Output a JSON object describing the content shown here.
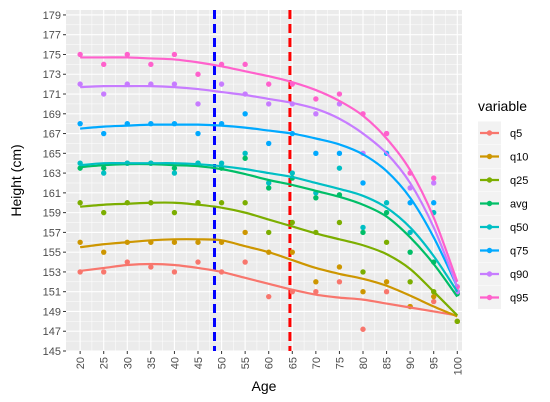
{
  "chart_data": {
    "type": "line",
    "xlabel": "Age",
    "ylabel": "Height (cm)",
    "xlim": [
      17,
      101
    ],
    "ylim": [
      145,
      179.5
    ],
    "x_ticks": [
      20,
      25,
      30,
      35,
      40,
      45,
      50,
      55,
      60,
      65,
      70,
      75,
      80,
      85,
      90,
      95,
      100
    ],
    "y_ticks": [
      145,
      147,
      149,
      151,
      153,
      155,
      157,
      159,
      161,
      163,
      165,
      167,
      169,
      171,
      173,
      175,
      177,
      179
    ],
    "grid": true,
    "legend_title": "variable",
    "legend_position": "right",
    "vlines": [
      {
        "x": 48.5,
        "color": "#0000ff",
        "style": "dashed"
      },
      {
        "x": 64.5,
        "color": "#ff0000",
        "style": "dashed"
      }
    ],
    "series": [
      {
        "name": "q5",
        "color": "#F8766D",
        "points": [
          [
            20,
            153
          ],
          [
            25,
            153
          ],
          [
            30,
            154
          ],
          [
            35,
            153.5
          ],
          [
            40,
            153
          ],
          [
            45,
            154
          ],
          [
            50,
            153
          ],
          [
            55,
            154
          ],
          [
            60,
            150.5
          ],
          [
            65,
            151
          ],
          [
            70,
            151
          ],
          [
            75,
            152
          ],
          [
            80,
            147.2
          ],
          [
            85,
            151
          ],
          [
            90,
            149.5
          ],
          [
            95,
            150
          ],
          [
            100,
            148
          ]
        ],
        "curve": [
          [
            20,
            153.1
          ],
          [
            25,
            153.4
          ],
          [
            30,
            153.7
          ],
          [
            35,
            153.8
          ],
          [
            40,
            153.7
          ],
          [
            45,
            153.4
          ],
          [
            50,
            153
          ],
          [
            55,
            152.4
          ],
          [
            60,
            151.8
          ],
          [
            65,
            151.2
          ],
          [
            70,
            150.7
          ],
          [
            75,
            150.4
          ],
          [
            80,
            150.2
          ],
          [
            85,
            149.8
          ],
          [
            90,
            149.4
          ],
          [
            95,
            149
          ],
          [
            100,
            148.6
          ]
        ]
      },
      {
        "name": "q10",
        "color": "#CD9600",
        "points": [
          [
            20,
            156
          ],
          [
            25,
            155
          ],
          [
            30,
            156
          ],
          [
            35,
            156
          ],
          [
            40,
            156
          ],
          [
            45,
            156
          ],
          [
            50,
            156
          ],
          [
            55,
            157
          ],
          [
            60,
            155
          ],
          [
            65,
            155
          ],
          [
            70,
            152
          ],
          [
            75,
            153.5
          ],
          [
            80,
            151
          ],
          [
            85,
            152
          ],
          [
            90,
            149.5
          ],
          [
            95,
            150.5
          ],
          [
            100,
            148
          ]
        ],
        "curve": [
          [
            20,
            155.5
          ],
          [
            25,
            155.8
          ],
          [
            30,
            156
          ],
          [
            35,
            156.2
          ],
          [
            40,
            156.3
          ],
          [
            45,
            156.3
          ],
          [
            50,
            156.2
          ],
          [
            55,
            155.6
          ],
          [
            60,
            155
          ],
          [
            65,
            154.2
          ],
          [
            70,
            153.4
          ],
          [
            75,
            152.8
          ],
          [
            80,
            152.3
          ],
          [
            85,
            151.6
          ],
          [
            90,
            150.6
          ],
          [
            95,
            149.5
          ],
          [
            100,
            148.5
          ]
        ]
      },
      {
        "name": "q25",
        "color": "#7CAE00",
        "points": [
          [
            20,
            160
          ],
          [
            25,
            159
          ],
          [
            30,
            160
          ],
          [
            35,
            160
          ],
          [
            40,
            159
          ],
          [
            45,
            160
          ],
          [
            50,
            160
          ],
          [
            55,
            160
          ],
          [
            60,
            157
          ],
          [
            65,
            158
          ],
          [
            70,
            157
          ],
          [
            75,
            158
          ],
          [
            80,
            153
          ],
          [
            85,
            156
          ],
          [
            90,
            152
          ],
          [
            95,
            151
          ],
          [
            100,
            148
          ]
        ],
        "curve": [
          [
            20,
            159.6
          ],
          [
            25,
            159.8
          ],
          [
            30,
            159.9
          ],
          [
            35,
            160
          ],
          [
            40,
            160
          ],
          [
            45,
            159.8
          ],
          [
            50,
            159.5
          ],
          [
            55,
            159
          ],
          [
            60,
            158.3
          ],
          [
            65,
            157.6
          ],
          [
            70,
            156.9
          ],
          [
            75,
            156.3
          ],
          [
            80,
            155.7
          ],
          [
            85,
            154.8
          ],
          [
            90,
            153.3
          ],
          [
            95,
            151
          ],
          [
            100,
            148.6
          ]
        ]
      },
      {
        "name": "avg",
        "color": "#00BE67",
        "points": [
          [
            20,
            163.5
          ],
          [
            25,
            163.5
          ],
          [
            30,
            164
          ],
          [
            35,
            164
          ],
          [
            40,
            163.5
          ],
          [
            45,
            164
          ],
          [
            50,
            163.5
          ],
          [
            55,
            164.5
          ],
          [
            60,
            161.5
          ],
          [
            65,
            162.5
          ],
          [
            70,
            160.5
          ],
          [
            75,
            160.8
          ],
          [
            80,
            157
          ],
          [
            85,
            159
          ],
          [
            90,
            155
          ],
          [
            95,
            154
          ],
          [
            100,
            150.8
          ]
        ],
        "curve": [
          [
            20,
            163.6
          ],
          [
            25,
            163.8
          ],
          [
            30,
            163.9
          ],
          [
            35,
            163.9
          ],
          [
            40,
            163.8
          ],
          [
            45,
            163.7
          ],
          [
            50,
            163.4
          ],
          [
            55,
            162.9
          ],
          [
            60,
            162.3
          ],
          [
            65,
            161.8
          ],
          [
            70,
            161.2
          ],
          [
            75,
            160.6
          ],
          [
            80,
            159.8
          ],
          [
            85,
            158.6
          ],
          [
            90,
            156.5
          ],
          [
            95,
            153.8
          ],
          [
            100,
            150.5
          ]
        ]
      },
      {
        "name": "q50",
        "color": "#00BFC4",
        "points": [
          [
            20,
            164
          ],
          [
            25,
            163
          ],
          [
            30,
            164
          ],
          [
            35,
            164
          ],
          [
            40,
            163
          ],
          [
            45,
            164
          ],
          [
            50,
            164
          ],
          [
            55,
            165
          ],
          [
            60,
            162
          ],
          [
            65,
            163
          ],
          [
            70,
            161
          ],
          [
            75,
            163.5
          ],
          [
            80,
            157.5
          ],
          [
            85,
            160
          ],
          [
            90,
            157
          ],
          [
            95,
            159
          ],
          [
            100,
            151
          ]
        ],
        "curve": [
          [
            20,
            163.8
          ],
          [
            25,
            164
          ],
          [
            30,
            164
          ],
          [
            35,
            164
          ],
          [
            40,
            164
          ],
          [
            45,
            163.9
          ],
          [
            50,
            163.7
          ],
          [
            55,
            163.4
          ],
          [
            60,
            163
          ],
          [
            65,
            162.6
          ],
          [
            70,
            162
          ],
          [
            75,
            161.4
          ],
          [
            80,
            160.7
          ],
          [
            85,
            159.5
          ],
          [
            90,
            157.5
          ],
          [
            95,
            154.6
          ],
          [
            100,
            151
          ]
        ]
      },
      {
        "name": "q75",
        "color": "#00A9FF",
        "points": [
          [
            20,
            168
          ],
          [
            25,
            167
          ],
          [
            30,
            168
          ],
          [
            35,
            168
          ],
          [
            40,
            168
          ],
          [
            45,
            167
          ],
          [
            50,
            168
          ],
          [
            55,
            169
          ],
          [
            60,
            166
          ],
          [
            65,
            167
          ],
          [
            70,
            165
          ],
          [
            75,
            165
          ],
          [
            80,
            162
          ],
          [
            85,
            165
          ],
          [
            90,
            160
          ],
          [
            95,
            160
          ],
          [
            100,
            151
          ]
        ],
        "curve": [
          [
            20,
            167.5
          ],
          [
            25,
            167.7
          ],
          [
            30,
            167.8
          ],
          [
            35,
            167.9
          ],
          [
            40,
            167.9
          ],
          [
            45,
            167.9
          ],
          [
            50,
            167.8
          ],
          [
            55,
            167.6
          ],
          [
            60,
            167.3
          ],
          [
            65,
            167
          ],
          [
            70,
            166.5
          ],
          [
            75,
            165.9
          ],
          [
            80,
            164.9
          ],
          [
            85,
            163.2
          ],
          [
            90,
            160.5
          ],
          [
            95,
            156.5
          ],
          [
            100,
            151.5
          ]
        ]
      },
      {
        "name": "q90",
        "color": "#C77CFF",
        "points": [
          [
            20,
            172
          ],
          [
            25,
            171
          ],
          [
            30,
            172
          ],
          [
            35,
            172
          ],
          [
            40,
            172
          ],
          [
            45,
            170
          ],
          [
            50,
            172
          ],
          [
            55,
            171
          ],
          [
            60,
            170
          ],
          [
            65,
            170
          ],
          [
            70,
            169
          ],
          [
            75,
            170
          ],
          [
            80,
            165
          ],
          [
            85,
            167
          ],
          [
            90,
            161.5
          ],
          [
            95,
            162
          ],
          [
            100,
            151
          ]
        ],
        "curve": [
          [
            20,
            171.7
          ],
          [
            25,
            171.8
          ],
          [
            30,
            171.8
          ],
          [
            35,
            171.8
          ],
          [
            40,
            171.7
          ],
          [
            45,
            171.5
          ],
          [
            50,
            171.2
          ],
          [
            55,
            170.9
          ],
          [
            60,
            170.5
          ],
          [
            65,
            170.1
          ],
          [
            70,
            169.5
          ],
          [
            75,
            168.5
          ],
          [
            80,
            167
          ],
          [
            85,
            165
          ],
          [
            90,
            162
          ],
          [
            95,
            157.5
          ],
          [
            100,
            151.5
          ]
        ]
      },
      {
        "name": "q95",
        "color": "#FF61CC",
        "points": [
          [
            20,
            175
          ],
          [
            25,
            174
          ],
          [
            30,
            175
          ],
          [
            35,
            174
          ],
          [
            40,
            175
          ],
          [
            45,
            173
          ],
          [
            50,
            174
          ],
          [
            55,
            174
          ],
          [
            60,
            172
          ],
          [
            65,
            172
          ],
          [
            70,
            170.5
          ],
          [
            75,
            171
          ],
          [
            80,
            169
          ],
          [
            85,
            167
          ],
          [
            90,
            163
          ],
          [
            95,
            162.5
          ],
          [
            100,
            151.5
          ]
        ],
        "curve": [
          [
            20,
            174.7
          ],
          [
            25,
            174.7
          ],
          [
            30,
            174.7
          ],
          [
            35,
            174.6
          ],
          [
            40,
            174.5
          ],
          [
            45,
            174.2
          ],
          [
            50,
            173.8
          ],
          [
            55,
            173.3
          ],
          [
            60,
            172.8
          ],
          [
            65,
            172.2
          ],
          [
            70,
            171.4
          ],
          [
            75,
            170.3
          ],
          [
            80,
            168.8
          ],
          [
            85,
            166.5
          ],
          [
            90,
            163.3
          ],
          [
            95,
            158.5
          ],
          [
            100,
            152
          ]
        ]
      }
    ]
  }
}
